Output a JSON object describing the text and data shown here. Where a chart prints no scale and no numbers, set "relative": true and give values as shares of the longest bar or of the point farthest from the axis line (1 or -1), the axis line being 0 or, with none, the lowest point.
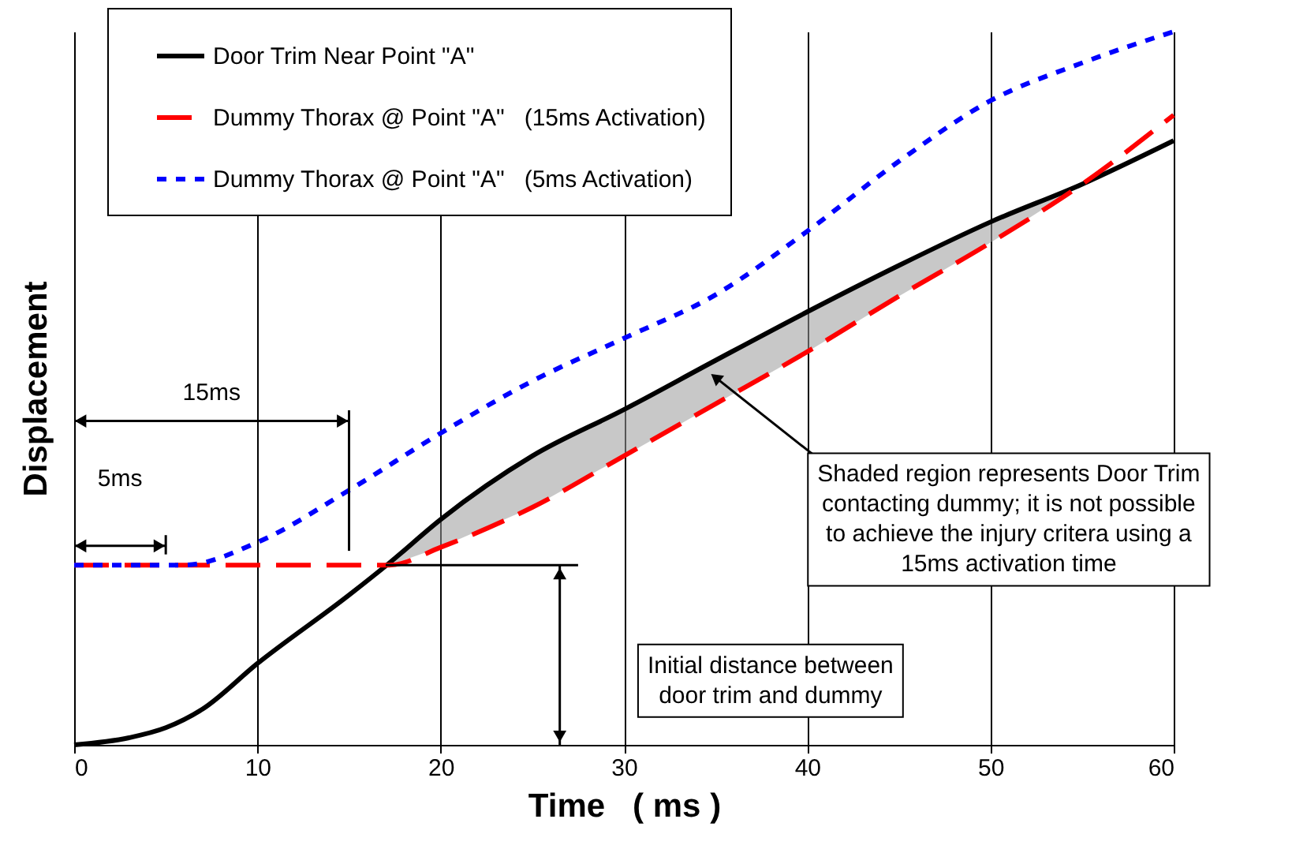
{
  "chart_data": {
    "type": "line",
    "relative": true,
    "xlabel": "Time   ( ms )",
    "ylabel": "Displacement",
    "xlim": [
      0,
      60
    ],
    "xticks": [
      0,
      10,
      20,
      30,
      40,
      50,
      60
    ],
    "grid": "x",
    "legend": "top left",
    "series": [
      {
        "name": "Door Trim Near Point \"A\"",
        "color": "#000000",
        "line_style": "solid",
        "x": [
          0,
          3,
          5,
          7,
          10,
          15,
          17.2,
          20,
          25,
          30,
          35,
          40,
          45,
          50,
          55,
          60
        ],
        "values": [
          0,
          0.01,
          0.024,
          0.05,
          0.114,
          0.21,
          0.255,
          0.316,
          0.405,
          0.47,
          0.539,
          0.607,
          0.672,
          0.733,
          0.786,
          0.847
        ],
        "lower": [
          null,
          null,
          null,
          null,
          null,
          null,
          0.252,
          0.277,
          0.333,
          0.405,
          0.478,
          0.551,
          0.629,
          0.704,
          0.786,
          null
        ],
        "upper": [
          null,
          null,
          null,
          null,
          null,
          null,
          0.255,
          0.316,
          0.405,
          0.47,
          0.539,
          0.607,
          0.672,
          0.733,
          0.786,
          null
        ]
      },
      {
        "name": "Dummy Thorax @ Point \"A\"   (15ms Activation)",
        "color": "#ff0000",
        "line_style": "dashed",
        "x": [
          0,
          17.2,
          20,
          25,
          30,
          35,
          40,
          45,
          50,
          55,
          60
        ],
        "values": [
          0.252,
          0.252,
          0.277,
          0.333,
          0.405,
          0.478,
          0.551,
          0.629,
          0.704,
          0.786,
          0.883
        ]
      },
      {
        "name": "Dummy Thorax @ Point \"A\"   (5ms Activation)",
        "color": "#0000ff",
        "line_style": "dotted",
        "x": [
          0,
          6,
          10,
          15,
          20,
          25,
          30,
          35,
          40,
          45,
          50,
          55,
          60
        ],
        "values": [
          0.252,
          0.252,
          0.284,
          0.357,
          0.437,
          0.51,
          0.57,
          0.631,
          0.72,
          0.818,
          0.903,
          0.956,
          1
        ]
      }
    ],
    "annotations": [
      "15ms",
      "5ms",
      {
        "text": "Shaded region represents Door Trim\ncontacting dummy; it is not possible\nto achieve the injury critera using a\n15ms activation time",
        "x": 35,
        "y": 0.515
      },
      "Initial distance between\ndoor trim and dummy"
    ]
  }
}
